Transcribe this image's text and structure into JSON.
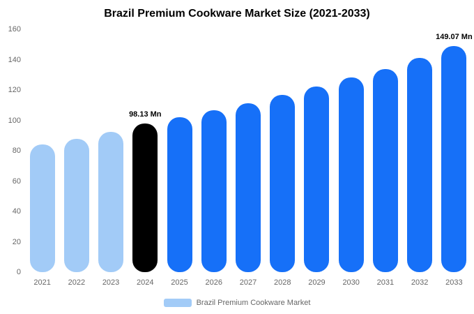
{
  "title": "Brazil Premium Cookware Market Size (2021-2033)",
  "legend": {
    "label": "Brazil Premium Cookware Market"
  },
  "colors": {
    "light_blue": "#A2CBF7",
    "primary_blue": "#1670F8",
    "highlight_black": "#000000",
    "axis_text": "#666666"
  },
  "chart_data": {
    "type": "bar",
    "title": "Brazil Premium Cookware Market Size (2021-2033)",
    "xlabel": "",
    "ylabel": "",
    "categories": [
      "2021",
      "2022",
      "2023",
      "2024",
      "2025",
      "2026",
      "2027",
      "2028",
      "2029",
      "2030",
      "2031",
      "2032",
      "2033"
    ],
    "values": [
      84,
      88,
      92.5,
      98.13,
      102,
      106.5,
      111.5,
      117,
      122.5,
      128.5,
      134,
      141,
      149.07
    ],
    "bar_colors": [
      "#A2CBF7",
      "#A2CBF7",
      "#A2CBF7",
      "#000000",
      "#1670F8",
      "#1670F8",
      "#1670F8",
      "#1670F8",
      "#1670F8",
      "#1670F8",
      "#1670F8",
      "#1670F8",
      "#1670F8"
    ],
    "annotations": [
      {
        "index": 3,
        "text": "98.13 Mn"
      },
      {
        "index": 12,
        "text": "149.07 Mn"
      }
    ],
    "ylim": [
      0,
      160
    ],
    "yticks": [
      0,
      20,
      40,
      60,
      80,
      100,
      120,
      140,
      160
    ],
    "grid": false,
    "legend_position": "bottom",
    "legend_entries": [
      "Brazil Premium Cookware Market"
    ]
  }
}
